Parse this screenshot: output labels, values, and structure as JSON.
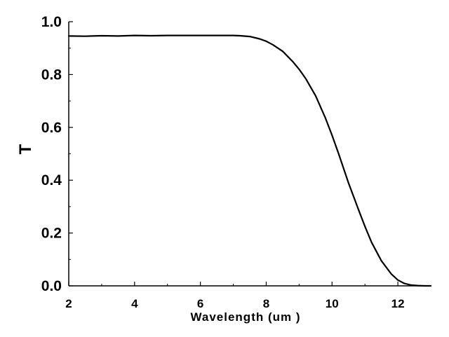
{
  "chart_data": {
    "type": "line",
    "title": "",
    "xlabel": "Wavelength (um )",
    "ylabel": "T",
    "xlim": [
      2,
      13
    ],
    "ylim": [
      0.0,
      1.0
    ],
    "x_ticks": [
      2,
      4,
      6,
      8,
      10,
      12
    ],
    "x_tick_labels": [
      "2",
      "4",
      "6",
      "8",
      "10",
      "12"
    ],
    "y_ticks": [
      0.0,
      0.2,
      0.4,
      0.6,
      0.8,
      1.0
    ],
    "y_tick_labels": [
      "0.0",
      "0.2",
      "0.4",
      "0.6",
      "0.8",
      "1.0"
    ],
    "grid": false,
    "legend": "none",
    "line_color": "#000000",
    "series": [
      {
        "x": [
          2.0,
          2.5,
          3.0,
          3.5,
          4.0,
          4.5,
          5.0,
          5.5,
          6.0,
          6.5,
          7.0,
          7.2,
          7.5,
          7.8,
          8.0,
          8.2,
          8.5,
          8.8,
          9.0,
          9.2,
          9.5,
          9.8,
          10.0,
          10.2,
          10.5,
          10.8,
          11.0,
          11.2,
          11.5,
          11.8,
          12.0,
          12.2,
          12.4,
          12.6,
          12.8,
          13.0
        ],
        "y": [
          0.946,
          0.945,
          0.947,
          0.946,
          0.948,
          0.947,
          0.948,
          0.948,
          0.948,
          0.948,
          0.948,
          0.947,
          0.944,
          0.935,
          0.926,
          0.913,
          0.888,
          0.85,
          0.82,
          0.785,
          0.72,
          0.635,
          0.57,
          0.5,
          0.39,
          0.29,
          0.225,
          0.165,
          0.095,
          0.045,
          0.022,
          0.009,
          0.003,
          0.001,
          0.0,
          0.0
        ]
      }
    ]
  }
}
